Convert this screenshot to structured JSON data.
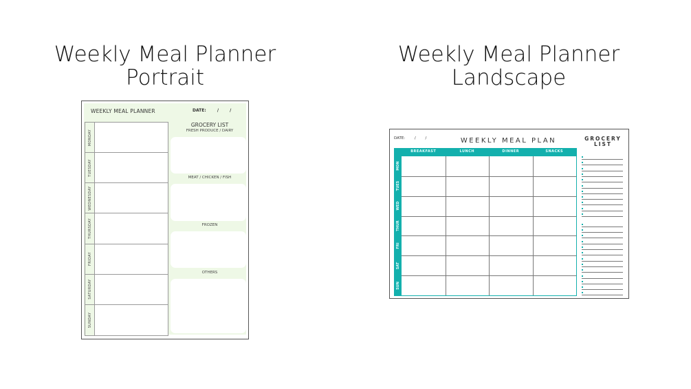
{
  "headings": {
    "portrait": {
      "line1": "Weekly Meal Planner",
      "line2": "Portrait"
    },
    "landscape": {
      "line1": "Weekly Meal Planner",
      "line2": "Landscape"
    }
  },
  "portrait": {
    "title": "WEEKLY MEAL PLANNER",
    "date_label": "DATE: / /",
    "days": [
      "MONDAY",
      "TUESDAY",
      "WEDNESDAY",
      "THURSDAY",
      "FRIDAY",
      "SATURDAY",
      "SUNDAY"
    ],
    "grocery_title": "GROCERY LIST",
    "sections": [
      "FRESH PRODUCE / DAIRY",
      "MEAT / CHICKEN / FISH",
      "FROZEN",
      "OTHERS"
    ],
    "background_color": "#eef8e6"
  },
  "landscape": {
    "date_label": "DATE: / /",
    "title": "WEEKLY MEAL PLAN",
    "grocery_title": "GROCERY LIST",
    "meals": [
      "BREAKFAST",
      "LUNCH",
      "DINNER",
      "SNACKS"
    ],
    "days": [
      "MON",
      "TUES",
      "WED",
      "THUR",
      "FRI",
      "SAT",
      "SUN"
    ],
    "grocery_line_groups": [
      11,
      13
    ],
    "accent_color": "#13b0ad"
  }
}
